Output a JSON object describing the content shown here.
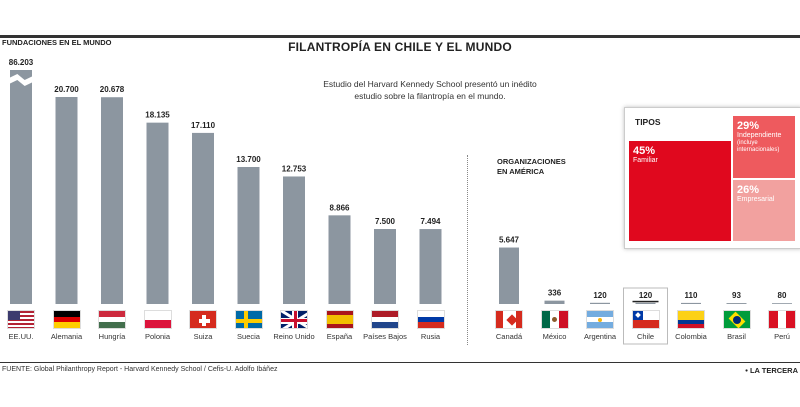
{
  "title": "FILANTROPÍA EN CHILE Y EL MUNDO",
  "section_world": "FUNDACIONES EN EL MUNDO",
  "section_america_line1": "ORGANIZACIONES",
  "section_america_line2": "EN AMÉRICA",
  "subtitle_line1": "Estudio del Harvard Kennedy School presentó un inédito",
  "subtitle_line2": "estudio sobre la filantropía en el mundo.",
  "source": "FUENTE: Global Philanthropy Report - Harvard Kennedy School / Cefis-U. Adolfo Ibáñez",
  "brand": "• LA TERCERA",
  "tipos": {
    "title": "TIPOS",
    "items": [
      {
        "pct": "45%",
        "label": "Familiar",
        "sublabel": "",
        "color": "#e0081e"
      },
      {
        "pct": "29%",
        "label": "Independiente",
        "sublabel": "(incluye internacionales)",
        "color": "#ee5a5e"
      },
      {
        "pct": "26%",
        "label": "Empresarial",
        "sublabel": "",
        "color": "#f2a19f"
      }
    ]
  },
  "colors": {
    "bar": "#8c96a0",
    "highlight_box": "#ffffff"
  },
  "chart_data": [
    {
      "type": "bar",
      "title": "FUNDACIONES EN EL MUNDO",
      "categories": [
        "EE.UU.",
        "Alemania",
        "Hungría",
        "Polonia",
        "Suiza",
        "Suecia",
        "Reino Unido",
        "España",
        "Países Bajos",
        "Rusia"
      ],
      "values": [
        86203,
        20700,
        20678,
        18135,
        17110,
        13700,
        12753,
        8866,
        7500,
        7494
      ],
      "value_labels": [
        "86.203",
        "20.700",
        "20.678",
        "18.135",
        "17.110",
        "13.700",
        "12.753",
        "8.866",
        "7.500",
        "7.494"
      ],
      "axis_break": true,
      "flags": [
        "usa",
        "germany",
        "hungary",
        "poland",
        "switzerland",
        "sweden",
        "uk",
        "spain",
        "netherlands",
        "russia"
      ]
    },
    {
      "type": "bar",
      "title": "ORGANIZACIONES EN AMÉRICA",
      "categories": [
        "Canadá",
        "México",
        "Argentina",
        "Chile",
        "Colombia",
        "Brasil",
        "Perú"
      ],
      "values": [
        5647,
        336,
        120,
        120,
        110,
        93,
        80
      ],
      "value_labels": [
        "5.647",
        "336",
        "120",
        "120",
        "110",
        "93",
        "80"
      ],
      "highlight": "Chile",
      "flags": [
        "canada",
        "mexico",
        "argentina",
        "chile",
        "colombia",
        "brazil",
        "peru"
      ]
    }
  ]
}
